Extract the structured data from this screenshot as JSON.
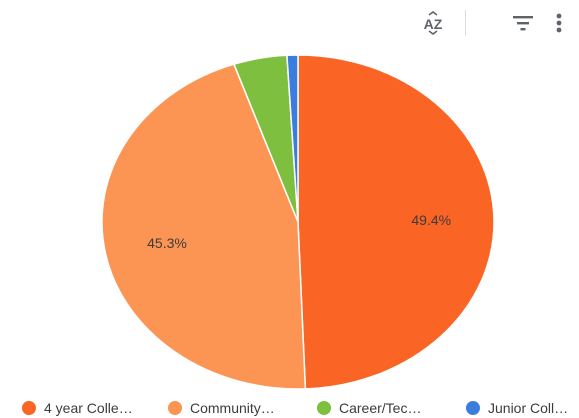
{
  "toolbar": {
    "sort_icon": "sort-az-icon",
    "sort_label": "AZ",
    "filter_icon": "filter-lines-icon",
    "more_icon": "more-vert-icon"
  },
  "chart_data": {
    "type": "pie",
    "title": "",
    "slices": [
      {
        "label": "4 year Colle…",
        "value": 49.4,
        "color": "#fa6424",
        "data_label": "49.4%"
      },
      {
        "label": "Community…",
        "value": 45.3,
        "color": "#fc9454",
        "data_label": "45.3%"
      },
      {
        "label": "Career/Tec…",
        "value": 4.4,
        "color": "#7fbf3f",
        "data_label": ""
      },
      {
        "label": "Junior Coll…",
        "value": 0.9,
        "color": "#3b7ddd",
        "data_label": ""
      }
    ],
    "legend_position": "bottom"
  }
}
